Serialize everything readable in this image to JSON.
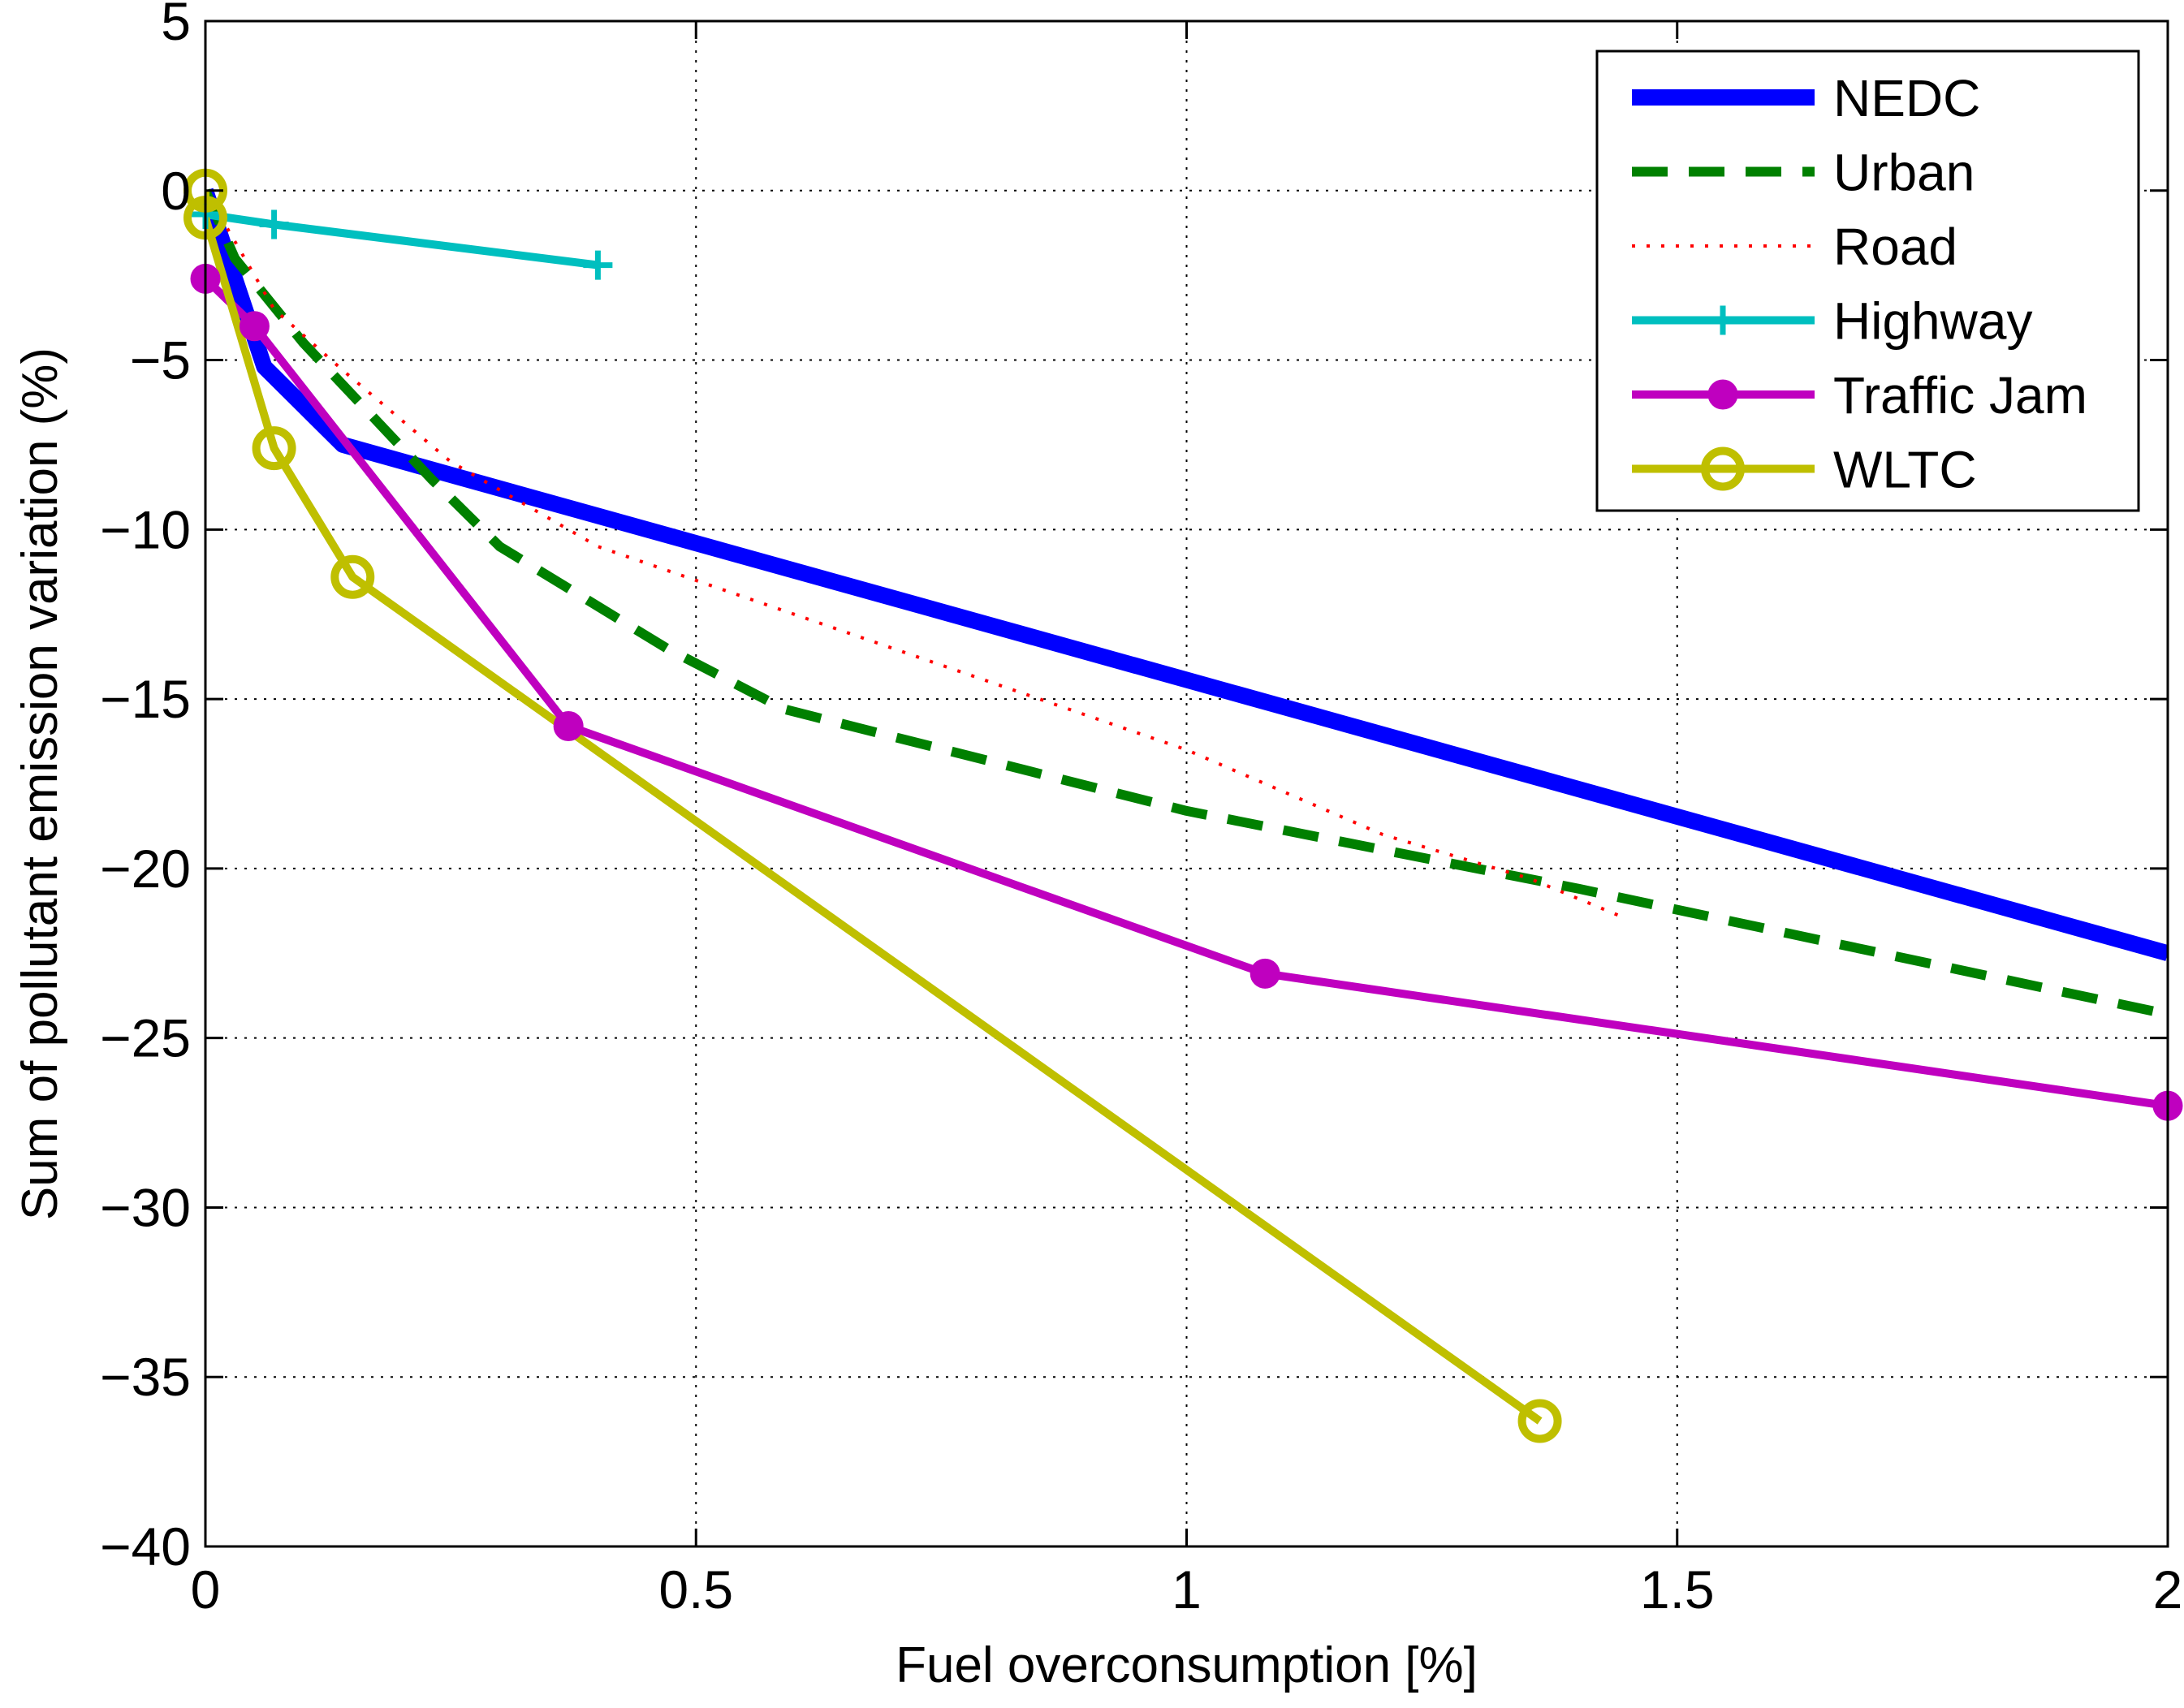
{
  "chart_data": {
    "type": "line",
    "title": "",
    "xlabel": "Fuel overconsumption [%]",
    "ylabel": "Sum of pollutant emission variation (%)",
    "xlim": [
      0,
      2
    ],
    "ylim": [
      -40,
      5
    ],
    "xticks": [
      0,
      0.5,
      1,
      1.5,
      2
    ],
    "xtick_labels": [
      "0",
      "0.5",
      "1",
      "1.5",
      "2"
    ],
    "yticks": [
      5,
      0,
      -5,
      -10,
      -15,
      -20,
      -25,
      -30,
      -35,
      -40
    ],
    "ytick_labels": [
      "5",
      "0",
      "−5",
      "−10",
      "−15",
      "−20",
      "−25",
      "−30",
      "−35",
      "−40"
    ],
    "grid": true,
    "legend_position": "top-right",
    "series": [
      {
        "name": "NEDC",
        "color": "#0000ff",
        "style": "solid",
        "marker": "none",
        "x": [
          0,
          0.06,
          0.14,
          2.0
        ],
        "y": [
          0,
          -5.2,
          -7.5,
          -22.5
        ]
      },
      {
        "name": "Urban",
        "color": "#008000",
        "style": "dashed",
        "marker": "none",
        "x": [
          0,
          0.03,
          0.1,
          0.23,
          0.3,
          0.47,
          0.59,
          1.0,
          1.4,
          2.0
        ],
        "y": [
          0,
          -2.0,
          -4.5,
          -8.5,
          -10.5,
          -13.5,
          -15.3,
          -18.3,
          -20.6,
          -24.3
        ]
      },
      {
        "name": "Road",
        "color": "#ff0000",
        "style": "dotted",
        "marker": "none",
        "x": [
          0,
          0.03,
          0.07,
          0.14,
          0.25,
          0.4,
          0.6,
          0.8,
          1.0,
          1.2,
          1.35,
          1.45
        ],
        "y": [
          0,
          -1.5,
          -3.5,
          -5.3,
          -8.0,
          -10.5,
          -12.5,
          -14.5,
          -16.5,
          -19.0,
          -20.3,
          -21.5
        ]
      },
      {
        "name": "Highway",
        "color": "#00bfbf",
        "style": "solid",
        "marker": "plus",
        "x": [
          0,
          0.07,
          0.4
        ],
        "y": [
          -0.7,
          -1.0,
          -2.2
        ]
      },
      {
        "name": "Traffic Jam",
        "color": "#bf00bf",
        "style": "solid",
        "marker": "filled-circle",
        "x": [
          0,
          0.05,
          0.37,
          1.08,
          2.0
        ],
        "y": [
          -2.6,
          -4.0,
          -15.8,
          -23.1,
          -27.0
        ]
      },
      {
        "name": "WLTC",
        "color": "#bfbf00",
        "style": "solid",
        "marker": "open-circle",
        "x": [
          0,
          0.0,
          0.07,
          0.15,
          1.36
        ],
        "y": [
          0,
          -0.8,
          -7.6,
          -11.4,
          -36.3
        ]
      }
    ]
  }
}
